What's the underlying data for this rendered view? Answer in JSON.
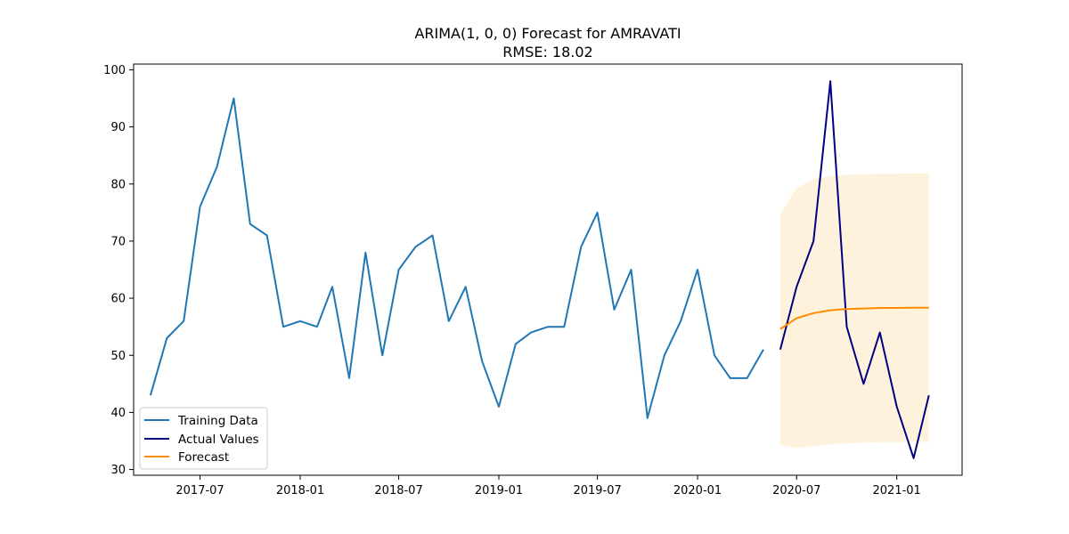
{
  "chart_data": {
    "type": "line",
    "title": "ARIMA(1, 0, 0) Forecast for AMRAVATI",
    "subtitle": "RMSE: 18.02",
    "xlabel": "",
    "ylabel": "",
    "xlim": [
      "2017-03-01",
      "2021-05-01"
    ],
    "ylim": [
      29,
      101
    ],
    "x_ticks": [
      "2017-07-01",
      "2018-01-01",
      "2018-07-01",
      "2019-01-01",
      "2019-07-01",
      "2020-01-01",
      "2020-07-01",
      "2021-01-01"
    ],
    "x_tick_labels": [
      "2017-07",
      "2018-01",
      "2018-07",
      "2019-01",
      "2019-07",
      "2020-01",
      "2020-07",
      "2021-01"
    ],
    "y_ticks": [
      30,
      40,
      50,
      60,
      70,
      80,
      90,
      100
    ],
    "y_tick_labels": [
      "30",
      "40",
      "50",
      "60",
      "70",
      "80",
      "90",
      "100"
    ],
    "grid": false,
    "legend_position": "bottom-left",
    "series": [
      {
        "name": "Training Data",
        "color": "#1f77b4",
        "x": [
          "2017-04-01",
          "2017-05-01",
          "2017-06-01",
          "2017-07-01",
          "2017-08-01",
          "2017-09-01",
          "2017-10-01",
          "2017-11-01",
          "2017-12-01",
          "2018-01-01",
          "2018-02-01",
          "2018-03-01",
          "2018-04-01",
          "2018-05-01",
          "2018-06-01",
          "2018-07-01",
          "2018-08-01",
          "2018-09-01",
          "2018-10-01",
          "2018-11-01",
          "2018-12-01",
          "2019-01-01",
          "2019-02-01",
          "2019-03-01",
          "2019-04-01",
          "2019-05-01",
          "2019-06-01",
          "2019-07-01",
          "2019-08-01",
          "2019-09-01",
          "2019-10-01",
          "2019-11-01",
          "2019-12-01",
          "2020-01-01",
          "2020-02-01",
          "2020-03-01",
          "2020-04-01",
          "2020-05-01"
        ],
        "y": [
          43,
          53,
          56,
          76,
          83,
          95,
          73,
          71,
          55,
          56,
          55,
          62,
          46,
          68,
          50,
          65,
          69,
          71,
          56,
          62,
          49,
          41,
          52,
          54,
          55,
          55,
          69,
          75,
          58,
          65,
          39,
          50,
          56,
          65,
          50,
          46,
          46,
          51
        ]
      },
      {
        "name": "Actual Values",
        "color": "#000080",
        "x": [
          "2020-06-01",
          "2020-07-01",
          "2020-08-01",
          "2020-09-01",
          "2020-10-01",
          "2020-11-01",
          "2020-12-01",
          "2021-01-01",
          "2021-02-01",
          "2021-03-01"
        ],
        "y": [
          51,
          62,
          70,
          98,
          55,
          45,
          54,
          41,
          32,
          43
        ]
      },
      {
        "name": "Forecast",
        "color": "#ff8c00",
        "x": [
          "2020-06-01",
          "2020-07-01",
          "2020-08-01",
          "2020-09-01",
          "2020-10-01",
          "2020-11-01",
          "2020-12-01",
          "2021-01-01",
          "2021-02-01",
          "2021-03-01"
        ],
        "y": [
          54.6,
          56.5,
          57.4,
          57.9,
          58.1,
          58.2,
          58.3,
          58.3,
          58.35,
          58.35
        ],
        "ci_lower": [
          34.3,
          33.7,
          34.1,
          34.4,
          34.6,
          34.7,
          34.8,
          34.8,
          34.85,
          34.85
        ],
        "ci_upper": [
          74.8,
          79.3,
          80.8,
          81.4,
          81.6,
          81.7,
          81.8,
          81.8,
          81.85,
          81.85
        ],
        "ci_color": "#ffe9c7"
      }
    ]
  }
}
